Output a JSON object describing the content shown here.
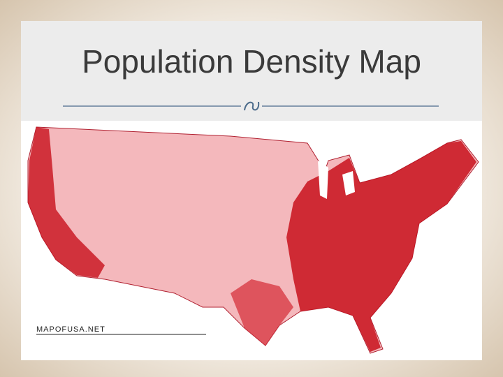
{
  "slide": {
    "title": "Population Density Map",
    "map_credit": "MAPOFUSA.NET"
  }
}
